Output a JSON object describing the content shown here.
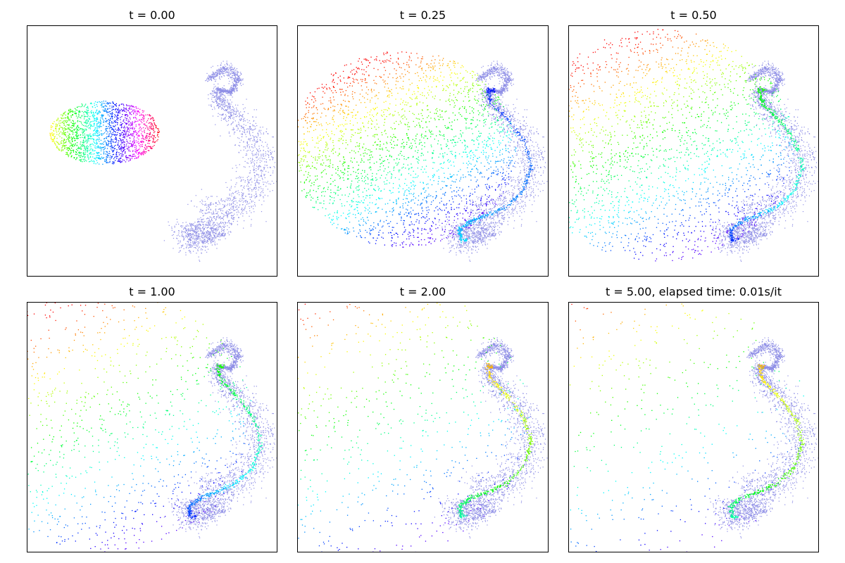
{
  "chart_data": {
    "type": "scatter",
    "description_free": true,
    "layout": "2x3 grid",
    "axes_visible": false,
    "grid": false,
    "colors": {
      "target": "#8f8fe6",
      "source_colormap": "hsv-rainbow",
      "frame": "#000000"
    },
    "panels": [
      {
        "title": "t = 0.00",
        "t": 0.0
      },
      {
        "title": "t = 0.25",
        "t": 0.25
      },
      {
        "title": "t = 0.50",
        "t": 0.5
      },
      {
        "title": "t = 1.00",
        "t": 1.0
      },
      {
        "title": "t = 2.00",
        "t": 2.0
      },
      {
        "title": "t = 5.00, elapsed time: 0.01s/it",
        "t": 5.0
      }
    ]
  }
}
